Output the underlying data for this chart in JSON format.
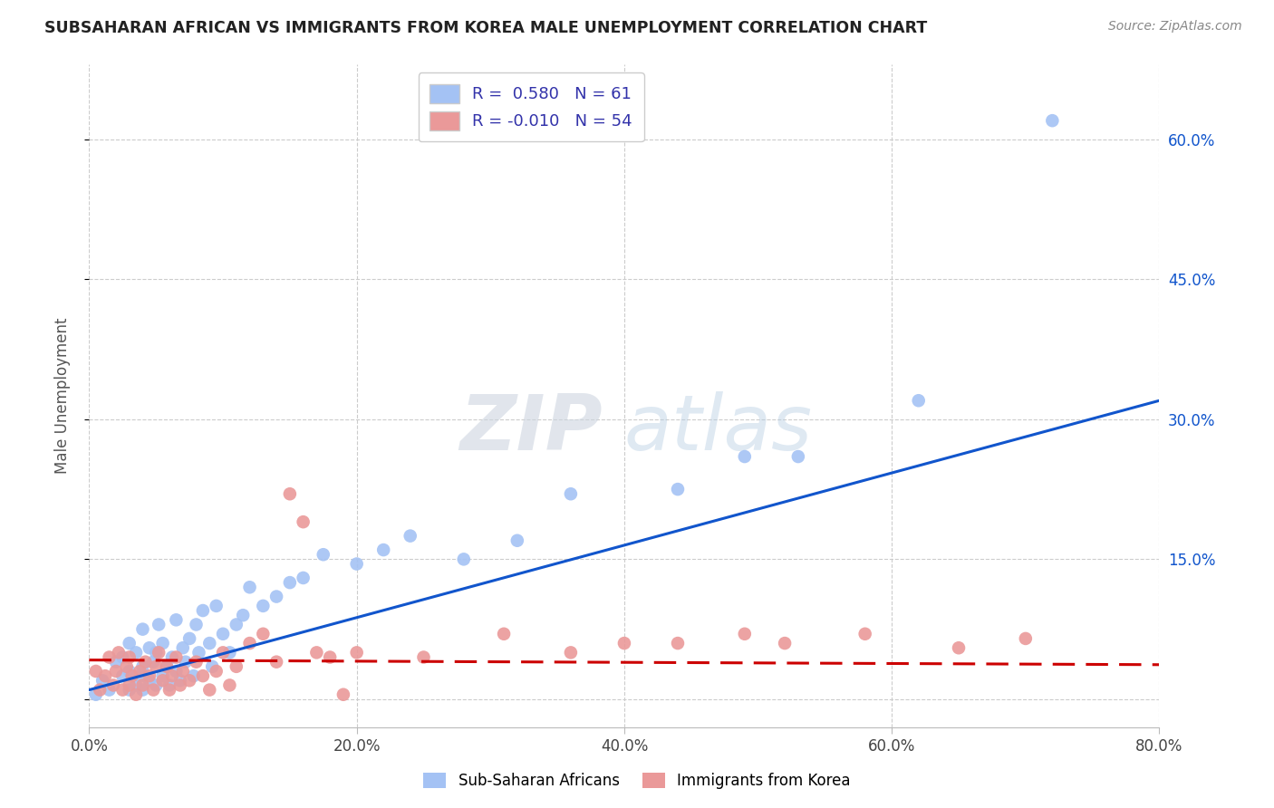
{
  "title": "SUBSAHARAN AFRICAN VS IMMIGRANTS FROM KOREA MALE UNEMPLOYMENT CORRELATION CHART",
  "source": "Source: ZipAtlas.com",
  "ylabel": "Male Unemployment",
  "xlim": [
    0.0,
    0.8
  ],
  "ylim": [
    -0.03,
    0.68
  ],
  "yticks": [
    0.0,
    0.15,
    0.3,
    0.45,
    0.6
  ],
  "xtick_positions": [
    0.0,
    0.2,
    0.4,
    0.6,
    0.8
  ],
  "xtick_labels": [
    "0.0%",
    "20.0%",
    "40.0%",
    "60.0%",
    "80.0%"
  ],
  "right_ytick_labels": [
    "15.0%",
    "30.0%",
    "45.0%",
    "60.0%"
  ],
  "blue_R": 0.58,
  "blue_N": 61,
  "pink_R": -0.01,
  "pink_N": 54,
  "blue_color": "#a4c2f4",
  "pink_color": "#ea9999",
  "blue_line_color": "#1155cc",
  "pink_line_color": "#cc0000",
  "watermark_zip": "ZIP",
  "watermark_atlas": "atlas",
  "legend_label_blue": "Sub-Saharan Africans",
  "legend_label_pink": "Immigrants from Korea",
  "blue_scatter_x": [
    0.005,
    0.01,
    0.015,
    0.02,
    0.025,
    0.025,
    0.03,
    0.03,
    0.03,
    0.035,
    0.035,
    0.038,
    0.04,
    0.04,
    0.04,
    0.042,
    0.045,
    0.045,
    0.048,
    0.05,
    0.05,
    0.052,
    0.055,
    0.055,
    0.058,
    0.06,
    0.062,
    0.065,
    0.065,
    0.068,
    0.07,
    0.072,
    0.075,
    0.078,
    0.08,
    0.082,
    0.085,
    0.09,
    0.092,
    0.095,
    0.1,
    0.105,
    0.11,
    0.115,
    0.12,
    0.13,
    0.14,
    0.15,
    0.16,
    0.175,
    0.2,
    0.22,
    0.24,
    0.28,
    0.32,
    0.36,
    0.44,
    0.49,
    0.53,
    0.62,
    0.72
  ],
  "blue_scatter_y": [
    0.005,
    0.02,
    0.01,
    0.04,
    0.025,
    0.045,
    0.01,
    0.03,
    0.06,
    0.015,
    0.05,
    0.025,
    0.01,
    0.035,
    0.075,
    0.025,
    0.02,
    0.055,
    0.04,
    0.015,
    0.05,
    0.08,
    0.025,
    0.06,
    0.035,
    0.015,
    0.045,
    0.03,
    0.085,
    0.02,
    0.055,
    0.04,
    0.065,
    0.025,
    0.08,
    0.05,
    0.095,
    0.06,
    0.035,
    0.1,
    0.07,
    0.05,
    0.08,
    0.09,
    0.12,
    0.1,
    0.11,
    0.125,
    0.13,
    0.155,
    0.145,
    0.16,
    0.175,
    0.15,
    0.17,
    0.22,
    0.225,
    0.26,
    0.26,
    0.32,
    0.62
  ],
  "pink_scatter_x": [
    0.005,
    0.008,
    0.012,
    0.015,
    0.018,
    0.02,
    0.022,
    0.025,
    0.028,
    0.03,
    0.03,
    0.032,
    0.035,
    0.038,
    0.04,
    0.042,
    0.045,
    0.048,
    0.05,
    0.052,
    0.055,
    0.058,
    0.06,
    0.062,
    0.065,
    0.068,
    0.07,
    0.075,
    0.08,
    0.085,
    0.09,
    0.095,
    0.1,
    0.105,
    0.11,
    0.12,
    0.13,
    0.14,
    0.15,
    0.16,
    0.17,
    0.18,
    0.19,
    0.2,
    0.25,
    0.31,
    0.36,
    0.4,
    0.44,
    0.49,
    0.52,
    0.58,
    0.65,
    0.7
  ],
  "pink_scatter_y": [
    0.03,
    0.01,
    0.025,
    0.045,
    0.015,
    0.03,
    0.05,
    0.01,
    0.035,
    0.015,
    0.045,
    0.025,
    0.005,
    0.03,
    0.015,
    0.04,
    0.025,
    0.01,
    0.035,
    0.05,
    0.02,
    0.035,
    0.01,
    0.025,
    0.045,
    0.015,
    0.03,
    0.02,
    0.04,
    0.025,
    0.01,
    0.03,
    0.05,
    0.015,
    0.035,
    0.06,
    0.07,
    0.04,
    0.22,
    0.19,
    0.05,
    0.045,
    0.005,
    0.05,
    0.045,
    0.07,
    0.05,
    0.06,
    0.06,
    0.07,
    0.06,
    0.07,
    0.055,
    0.065
  ],
  "blue_line_x0": 0.0,
  "blue_line_y0": 0.01,
  "blue_line_x1": 0.8,
  "blue_line_y1": 0.32,
  "pink_line_x0": 0.0,
  "pink_line_y0": 0.042,
  "pink_line_x1": 0.8,
  "pink_line_y1": 0.037
}
